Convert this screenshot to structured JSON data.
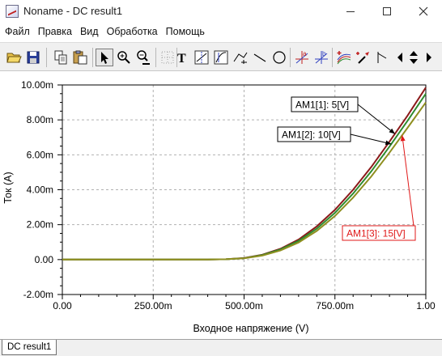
{
  "window": {
    "title": "Noname - DC result1"
  },
  "menu": [
    "Файл",
    "Правка",
    "Вид",
    "Обработка",
    "Помощь"
  ],
  "toolbar": {
    "icons": [
      "open-file",
      "save",
      "copy",
      "paste",
      "select-arrow",
      "zoom-in",
      "zoom-100",
      "grid",
      "text",
      "cursor-1",
      "cursor-2",
      "cursor-3",
      "function-tool",
      "line",
      "ellipse",
      "marker-a",
      "marker-b",
      "add-curve",
      "pick-color",
      "label-curve",
      "nav-arrows"
    ],
    "text_tool_glyph": "T",
    "marker_a_label": "a",
    "marker_b_label": "b"
  },
  "tabs": [
    {
      "label": "DC result1",
      "active": true
    }
  ],
  "chart_data": {
    "type": "line",
    "xlabel": "Входное напряжение (V)",
    "ylabel": "Ток (A)",
    "xlim": [
      0,
      1.0
    ],
    "ylim": [
      -2.0,
      10.0
    ],
    "x_ticks": [
      "0.00",
      "250.00m",
      "500.00m",
      "750.00m",
      "1.00"
    ],
    "y_ticks": [
      "-2.00m",
      "0.00",
      "2.00m",
      "4.00m",
      "6.00m",
      "8.00m",
      "10.00m"
    ],
    "grid": true,
    "series": [
      {
        "name": "AM1[1]: 5[V]",
        "color": "#8b1a1a",
        "x": [
          0,
          0.4,
          0.45,
          0.5,
          0.55,
          0.6,
          0.65,
          0.7,
          0.75,
          0.8,
          0.85,
          0.9,
          0.95,
          1.0
        ],
        "y": [
          0,
          0,
          0.02,
          0.09,
          0.28,
          0.62,
          1.15,
          1.9,
          2.85,
          4.0,
          5.3,
          6.75,
          8.25,
          9.85
        ]
      },
      {
        "name": "AM1[2]: 10[V]",
        "color": "#2e8b2e",
        "x": [
          0,
          0.4,
          0.45,
          0.5,
          0.55,
          0.6,
          0.65,
          0.7,
          0.75,
          0.8,
          0.85,
          0.9,
          0.95,
          1.0
        ],
        "y": [
          0,
          0,
          0.02,
          0.08,
          0.26,
          0.58,
          1.07,
          1.77,
          2.68,
          3.78,
          5.05,
          6.47,
          7.95,
          9.5
        ]
      },
      {
        "name": "AM1[3]: 15[V]",
        "color": "#8f8f20",
        "x": [
          0,
          0.4,
          0.45,
          0.5,
          0.55,
          0.6,
          0.65,
          0.7,
          0.75,
          0.8,
          0.85,
          0.9,
          0.95,
          1.0
        ],
        "y": [
          0,
          0,
          0.02,
          0.07,
          0.23,
          0.52,
          0.98,
          1.64,
          2.5,
          3.55,
          4.76,
          6.12,
          7.55,
          9.0
        ]
      }
    ],
    "annotations": [
      {
        "text": "AM1[1]: 5[V]",
        "color": "#000000",
        "target_series": 0,
        "target_x": 0.915
      },
      {
        "text": "AM1[2]: 10[V]",
        "color": "#000000",
        "target_series": 1,
        "target_x": 0.905
      },
      {
        "text": "AM1[3]: 15[V]",
        "color": "#e01818",
        "target_series": 2,
        "target_x": 0.935
      }
    ]
  }
}
